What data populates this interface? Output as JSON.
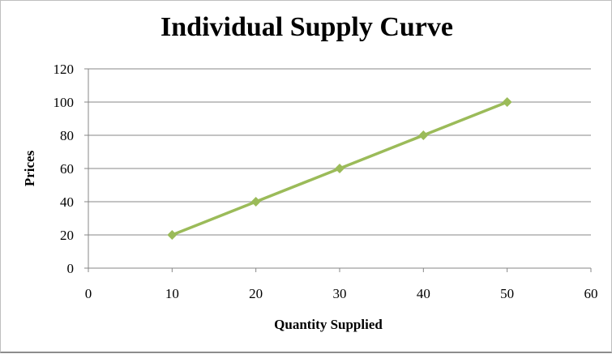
{
  "chart_data": {
    "type": "scatter",
    "title": "Individual Supply Curve",
    "xlabel": "Quantity Supplied",
    "ylabel": "Prices",
    "xlim": [
      0,
      60
    ],
    "ylim": [
      0,
      120
    ],
    "xticks": [
      0,
      10,
      20,
      30,
      40,
      50,
      60
    ],
    "yticks": [
      0,
      20,
      40,
      60,
      80,
      100,
      120
    ],
    "grid": "horizontal",
    "legend": "none",
    "series": [
      {
        "x": [
          10,
          20,
          30,
          40,
          50
        ],
        "y": [
          20,
          40,
          60,
          80,
          100
        ],
        "color": "#9BBB59",
        "marker": "diamond",
        "lines": true
      }
    ]
  }
}
